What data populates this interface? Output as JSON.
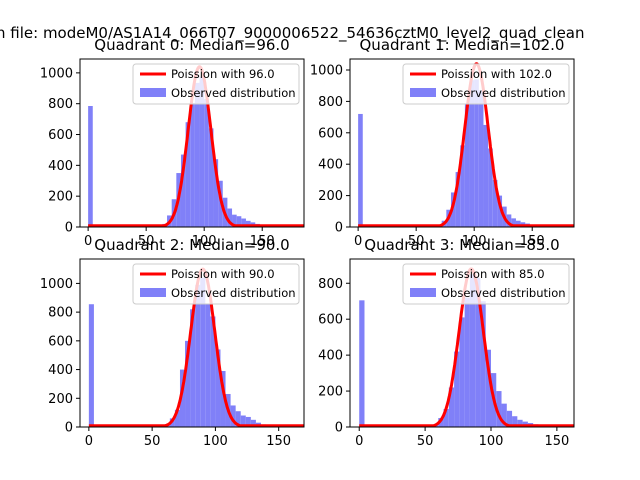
{
  "suptitle": "n file: modeM0/AS1A14_066T07_9000006522_54636cztM0_level2_quad_clean",
  "colors": {
    "hist": "#8080f8",
    "poisson": "#ff0000",
    "axis": "#000000"
  },
  "chart_data": [
    {
      "type": "bar",
      "title": "Quadrant 0: Median=96.0",
      "median": 96.0,
      "amplitude": 1040,
      "sigma": 9.8,
      "xlim": [
        -7,
        186
      ],
      "ylim": [
        0,
        1090
      ],
      "xticks": [
        0,
        50,
        100,
        150
      ],
      "yticks": [
        0,
        200,
        400,
        600,
        800,
        1000
      ],
      "bin_width": 4,
      "hist": [
        {
          "x": 0,
          "y": 785
        },
        {
          "x": 4,
          "y": 0
        },
        {
          "x": 8,
          "y": 0
        },
        {
          "x": 12,
          "y": 0
        },
        {
          "x": 16,
          "y": 0
        },
        {
          "x": 20,
          "y": 0
        },
        {
          "x": 24,
          "y": 0
        },
        {
          "x": 28,
          "y": 0
        },
        {
          "x": 32,
          "y": 0
        },
        {
          "x": 36,
          "y": 0
        },
        {
          "x": 40,
          "y": 0
        },
        {
          "x": 44,
          "y": 0
        },
        {
          "x": 48,
          "y": 0
        },
        {
          "x": 52,
          "y": 0
        },
        {
          "x": 56,
          "y": 0
        },
        {
          "x": 60,
          "y": 3
        },
        {
          "x": 64,
          "y": 20
        },
        {
          "x": 68,
          "y": 75
        },
        {
          "x": 72,
          "y": 180
        },
        {
          "x": 76,
          "y": 350
        },
        {
          "x": 80,
          "y": 470
        },
        {
          "x": 84,
          "y": 680
        },
        {
          "x": 88,
          "y": 805
        },
        {
          "x": 92,
          "y": 935
        },
        {
          "x": 96,
          "y": 975
        },
        {
          "x": 100,
          "y": 830
        },
        {
          "x": 104,
          "y": 640
        },
        {
          "x": 108,
          "y": 440
        },
        {
          "x": 112,
          "y": 300
        },
        {
          "x": 116,
          "y": 190
        },
        {
          "x": 120,
          "y": 120
        },
        {
          "x": 124,
          "y": 80
        },
        {
          "x": 128,
          "y": 70
        },
        {
          "x": 132,
          "y": 55
        },
        {
          "x": 136,
          "y": 40
        },
        {
          "x": 140,
          "y": 30
        },
        {
          "x": 144,
          "y": 20
        },
        {
          "x": 148,
          "y": 12
        },
        {
          "x": 152,
          "y": 8
        },
        {
          "x": 156,
          "y": 5
        },
        {
          "x": 160,
          "y": 3
        },
        {
          "x": 164,
          "y": 2
        },
        {
          "x": 168,
          "y": 1
        },
        {
          "x": 172,
          "y": 1
        }
      ],
      "legend": [
        "Poission with 96.0",
        "Observed distribution"
      ]
    },
    {
      "type": "bar",
      "title": "Quadrant 1: Median=102.0",
      "median": 102.0,
      "amplitude": 1040,
      "sigma": 10.1,
      "xlim": [
        -7,
        186
      ],
      "ylim": [
        0,
        1070
      ],
      "xticks": [
        0,
        50,
        100,
        150
      ],
      "yticks": [
        0,
        200,
        400,
        600,
        800,
        1000
      ],
      "bin_width": 4,
      "hist": [
        {
          "x": 0,
          "y": 720
        },
        {
          "x": 4,
          "y": 0
        },
        {
          "x": 8,
          "y": 0
        },
        {
          "x": 12,
          "y": 0
        },
        {
          "x": 16,
          "y": 0
        },
        {
          "x": 20,
          "y": 0
        },
        {
          "x": 24,
          "y": 0
        },
        {
          "x": 28,
          "y": 0
        },
        {
          "x": 32,
          "y": 0
        },
        {
          "x": 36,
          "y": 0
        },
        {
          "x": 40,
          "y": 0
        },
        {
          "x": 44,
          "y": 0
        },
        {
          "x": 48,
          "y": 0
        },
        {
          "x": 52,
          "y": 0
        },
        {
          "x": 56,
          "y": 0
        },
        {
          "x": 60,
          "y": 0
        },
        {
          "x": 64,
          "y": 2
        },
        {
          "x": 68,
          "y": 12
        },
        {
          "x": 72,
          "y": 40
        },
        {
          "x": 76,
          "y": 110
        },
        {
          "x": 80,
          "y": 220
        },
        {
          "x": 84,
          "y": 350
        },
        {
          "x": 88,
          "y": 520
        },
        {
          "x": 92,
          "y": 780
        },
        {
          "x": 96,
          "y": 935
        },
        {
          "x": 100,
          "y": 940
        },
        {
          "x": 104,
          "y": 870
        },
        {
          "x": 108,
          "y": 650
        },
        {
          "x": 112,
          "y": 500
        },
        {
          "x": 116,
          "y": 300
        },
        {
          "x": 120,
          "y": 200
        },
        {
          "x": 124,
          "y": 130
        },
        {
          "x": 128,
          "y": 80
        },
        {
          "x": 132,
          "y": 55
        },
        {
          "x": 136,
          "y": 40
        },
        {
          "x": 140,
          "y": 30
        },
        {
          "x": 144,
          "y": 22
        },
        {
          "x": 148,
          "y": 15
        },
        {
          "x": 152,
          "y": 10
        },
        {
          "x": 156,
          "y": 6
        },
        {
          "x": 160,
          "y": 4
        },
        {
          "x": 164,
          "y": 2
        },
        {
          "x": 168,
          "y": 1
        }
      ],
      "legend": [
        "Poission with 102.0",
        "Observed distribution"
      ]
    },
    {
      "type": "bar",
      "title": "Quadrant 2: Median=90.0",
      "median": 90.0,
      "amplitude": 1100,
      "sigma": 9.5,
      "xlim": [
        -7,
        170
      ],
      "ylim": [
        0,
        1170
      ],
      "xticks": [
        0,
        50,
        100,
        150
      ],
      "yticks": [
        0,
        200,
        400,
        600,
        800,
        1000
      ],
      "bin_width": 4,
      "hist": [
        {
          "x": 0,
          "y": 855
        },
        {
          "x": 4,
          "y": 0
        },
        {
          "x": 8,
          "y": 0
        },
        {
          "x": 12,
          "y": 0
        },
        {
          "x": 16,
          "y": 0
        },
        {
          "x": 20,
          "y": 0
        },
        {
          "x": 24,
          "y": 0
        },
        {
          "x": 28,
          "y": 0
        },
        {
          "x": 32,
          "y": 0
        },
        {
          "x": 36,
          "y": 0
        },
        {
          "x": 40,
          "y": 0
        },
        {
          "x": 44,
          "y": 0
        },
        {
          "x": 48,
          "y": 0
        },
        {
          "x": 52,
          "y": 0
        },
        {
          "x": 56,
          "y": 2
        },
        {
          "x": 60,
          "y": 20
        },
        {
          "x": 64,
          "y": 60
        },
        {
          "x": 68,
          "y": 120
        },
        {
          "x": 72,
          "y": 400
        },
        {
          "x": 76,
          "y": 600
        },
        {
          "x": 80,
          "y": 820
        },
        {
          "x": 84,
          "y": 990
        },
        {
          "x": 88,
          "y": 1040
        },
        {
          "x": 92,
          "y": 860
        },
        {
          "x": 96,
          "y": 770
        },
        {
          "x": 100,
          "y": 540
        },
        {
          "x": 104,
          "y": 390
        },
        {
          "x": 108,
          "y": 230
        },
        {
          "x": 112,
          "y": 150
        },
        {
          "x": 116,
          "y": 110
        },
        {
          "x": 120,
          "y": 80
        },
        {
          "x": 124,
          "y": 70
        },
        {
          "x": 128,
          "y": 50
        },
        {
          "x": 132,
          "y": 30
        },
        {
          "x": 136,
          "y": 18
        },
        {
          "x": 140,
          "y": 12
        },
        {
          "x": 144,
          "y": 8
        },
        {
          "x": 148,
          "y": 4
        },
        {
          "x": 152,
          "y": 2
        },
        {
          "x": 156,
          "y": 1
        }
      ],
      "legend": [
        "Poission with 90.0",
        "Observed distribution"
      ]
    },
    {
      "type": "bar",
      "title": "Quadrant 3: Median=85.0",
      "median": 85.0,
      "amplitude": 880,
      "sigma": 9.2,
      "xlim": [
        -7,
        163
      ],
      "ylim": [
        0,
        935
      ],
      "xticks": [
        0,
        50,
        100,
        150
      ],
      "yticks": [
        0,
        200,
        400,
        600,
        800
      ],
      "bin_width": 4,
      "hist": [
        {
          "x": 0,
          "y": 705
        },
        {
          "x": 4,
          "y": 0
        },
        {
          "x": 8,
          "y": 0
        },
        {
          "x": 12,
          "y": 0
        },
        {
          "x": 16,
          "y": 0
        },
        {
          "x": 20,
          "y": 0
        },
        {
          "x": 24,
          "y": 0
        },
        {
          "x": 28,
          "y": 0
        },
        {
          "x": 32,
          "y": 0
        },
        {
          "x": 36,
          "y": 0
        },
        {
          "x": 40,
          "y": 0
        },
        {
          "x": 44,
          "y": 0
        },
        {
          "x": 48,
          "y": 0
        },
        {
          "x": 52,
          "y": 2
        },
        {
          "x": 56,
          "y": 15
        },
        {
          "x": 60,
          "y": 50
        },
        {
          "x": 64,
          "y": 100
        },
        {
          "x": 68,
          "y": 220
        },
        {
          "x": 72,
          "y": 420
        },
        {
          "x": 76,
          "y": 610
        },
        {
          "x": 80,
          "y": 720
        },
        {
          "x": 84,
          "y": 850
        },
        {
          "x": 88,
          "y": 830
        },
        {
          "x": 92,
          "y": 700
        },
        {
          "x": 96,
          "y": 430
        },
        {
          "x": 100,
          "y": 300
        },
        {
          "x": 104,
          "y": 200
        },
        {
          "x": 108,
          "y": 130
        },
        {
          "x": 112,
          "y": 90
        },
        {
          "x": 116,
          "y": 60
        },
        {
          "x": 120,
          "y": 40
        },
        {
          "x": 124,
          "y": 30
        },
        {
          "x": 128,
          "y": 22
        },
        {
          "x": 132,
          "y": 15
        },
        {
          "x": 136,
          "y": 10
        },
        {
          "x": 140,
          "y": 6
        },
        {
          "x": 144,
          "y": 3
        },
        {
          "x": 148,
          "y": 1
        }
      ],
      "legend": [
        "Poission with 85.0",
        "Observed distribution"
      ]
    }
  ]
}
